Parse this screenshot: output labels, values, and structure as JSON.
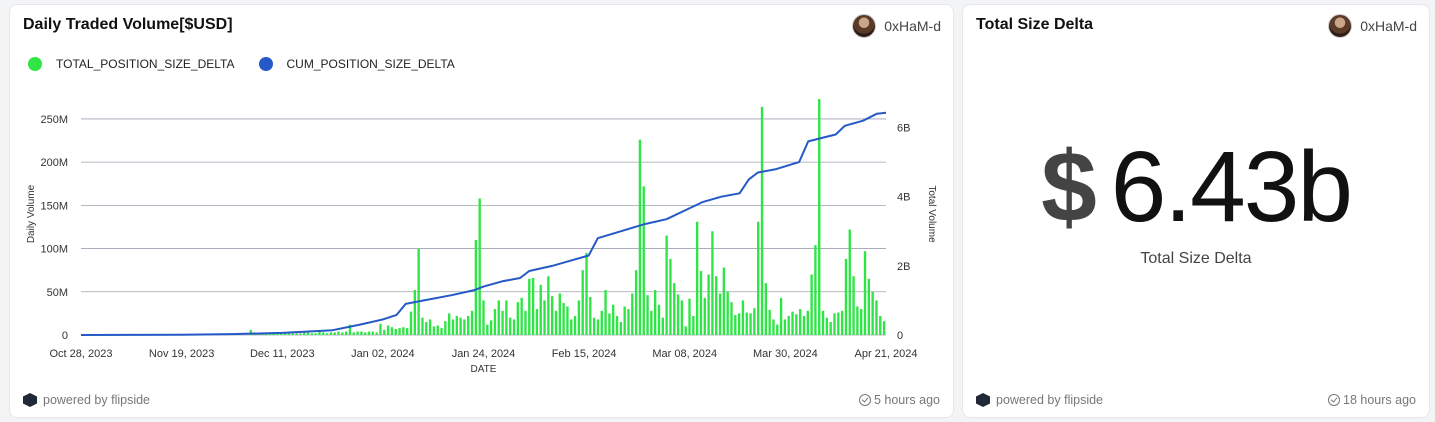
{
  "card_chart": {
    "title": "Daily Traded Volume[$USD]",
    "author": "0xHaM-d",
    "powered_by": "powered by flipside",
    "updated": "5 hours ago"
  },
  "card_kpi": {
    "title": "Total Size Delta",
    "author": "0xHaM-d",
    "currency": "$",
    "value": "6.43b",
    "label": "Total Size Delta",
    "powered_by": "powered by flipside",
    "updated": "18 hours ago"
  },
  "colors": {
    "bar": "#2ee545",
    "line": "#2459c7",
    "grid": "#9ca3af",
    "axis_text": "#333333"
  },
  "chart_data": {
    "type": "bar",
    "title": "Daily Traded Volume[$USD]",
    "xlabel": "DATE",
    "ylabel": "Daily Volume",
    "y2label": "Total Volume",
    "legend_position": "top-left",
    "grid": true,
    "ylim": [
      0,
      280000000
    ],
    "y2lim": [
      0,
      7000000000
    ],
    "y_ticks": [
      0,
      50000000,
      100000000,
      150000000,
      200000000,
      250000000
    ],
    "y_tick_labels": [
      "0",
      "50M",
      "100M",
      "150M",
      "200M",
      "250M"
    ],
    "y2_ticks": [
      0,
      2000000000,
      4000000000,
      6000000000
    ],
    "y2_tick_labels": [
      "0",
      "2B",
      "4B",
      "6B"
    ],
    "x_ticks": [
      "Oct 28, 2023",
      "Nov 19, 2023",
      "Dec 11, 2023",
      "Jan 02, 2024",
      "Jan 24, 2024",
      "Feb 15, 2024",
      "Mar 08, 2024",
      "Mar 30, 2024",
      "Apr 21, 2024"
    ],
    "x_start": "2023-10-28",
    "x_end": "2024-04-21",
    "series": [
      {
        "name": "TOTAL_POSITION_SIZE_DELTA",
        "kind": "bar",
        "axis": "left",
        "values": [
          0,
          0,
          0,
          0,
          0,
          0,
          0,
          0,
          0,
          0,
          0,
          0,
          0,
          0,
          0,
          0,
          0,
          0,
          0,
          1000000,
          0,
          0,
          0,
          0,
          0,
          0,
          0,
          0,
          0,
          0,
          0,
          0,
          0,
          0,
          0,
          500000,
          500000,
          0,
          0,
          0,
          0,
          0,
          0,
          0,
          6000000,
          3000000,
          2000000,
          2000000,
          2000000,
          2000000,
          3000000,
          3000000,
          2000000,
          2000000,
          3000000,
          2000000,
          2000000,
          2000000,
          3000000,
          3000000,
          2000000,
          2000000,
          5000000,
          3000000,
          2000000,
          3000000,
          3000000,
          4000000,
          3000000,
          4000000,
          12000000,
          3000000,
          4000000,
          4000000,
          3000000,
          4000000,
          4000000,
          3000000,
          13000000,
          6000000,
          11000000,
          9000000,
          7000000,
          8000000,
          9000000,
          8000000,
          27000000,
          52000000,
          100000000,
          20000000,
          15000000,
          18000000,
          10000000,
          11000000,
          8000000,
          16000000,
          25000000,
          18000000,
          22000000,
          20000000,
          18000000,
          22000000,
          28000000,
          110000000,
          158000000,
          40000000,
          12000000,
          17000000,
          30000000,
          40000000,
          28000000,
          40000000,
          20000000,
          18000000,
          38000000,
          43000000,
          28000000,
          65000000,
          66000000,
          30000000,
          58000000,
          40000000,
          68000000,
          45000000,
          28000000,
          48000000,
          37000000,
          33000000,
          18000000,
          22000000,
          40000000,
          75000000,
          95000000,
          44000000,
          20000000,
          18000000,
          28000000,
          52000000,
          25000000,
          35000000,
          22000000,
          15000000,
          33000000,
          30000000,
          48000000,
          75000000,
          226000000,
          172000000,
          46000000,
          28000000,
          52000000,
          35000000,
          20000000,
          115000000,
          88000000,
          60000000,
          47000000,
          40000000,
          10000000,
          42000000,
          22000000,
          131000000,
          74000000,
          43000000,
          70000000,
          120000000,
          68000000,
          48000000,
          78000000,
          50000000,
          38000000,
          23000000,
          25000000,
          40000000,
          26000000,
          25000000,
          31000000,
          131000000,
          264000000,
          60000000,
          29000000,
          18000000,
          12000000,
          43000000,
          18000000,
          22000000,
          27000000,
          24000000,
          30000000,
          22000000,
          28000000,
          70000000,
          104000000,
          273000000,
          28000000,
          20000000,
          15000000,
          25000000,
          26000000,
          28000000,
          88000000,
          122000000,
          68000000,
          33000000,
          30000000,
          97000000,
          65000000,
          50000000,
          40000000,
          22000000,
          16000000
        ]
      },
      {
        "name": "CUM_POSITION_SIZE_DELTA",
        "kind": "line",
        "axis": "right",
        "points": [
          [
            "2023-10-28",
            0
          ],
          [
            "2023-11-19",
            10000000
          ],
          [
            "2023-11-30",
            25000000
          ],
          [
            "2023-12-11",
            60000000
          ],
          [
            "2023-12-22",
            140000000
          ],
          [
            "2023-12-28",
            300000000
          ],
          [
            "2024-01-02",
            450000000
          ],
          [
            "2024-01-05",
            580000000
          ],
          [
            "2024-01-07",
            900000000
          ],
          [
            "2024-01-11",
            1000000000
          ],
          [
            "2024-01-17",
            1150000000
          ],
          [
            "2024-01-22",
            1300000000
          ],
          [
            "2024-01-24",
            1400000000
          ],
          [
            "2024-01-28",
            1550000000
          ],
          [
            "2024-02-01",
            1650000000
          ],
          [
            "2024-02-03",
            1850000000
          ],
          [
            "2024-02-08",
            2000000000
          ],
          [
            "2024-02-12",
            2150000000
          ],
          [
            "2024-02-16",
            2300000000
          ],
          [
            "2024-02-18",
            2800000000
          ],
          [
            "2024-02-23",
            3000000000
          ],
          [
            "2024-02-28",
            3200000000
          ],
          [
            "2024-03-04",
            3350000000
          ],
          [
            "2024-03-08",
            3600000000
          ],
          [
            "2024-03-12",
            3850000000
          ],
          [
            "2024-03-16",
            4000000000
          ],
          [
            "2024-03-20",
            4100000000
          ],
          [
            "2024-03-22",
            4500000000
          ],
          [
            "2024-03-24",
            4700000000
          ],
          [
            "2024-03-28",
            4800000000
          ],
          [
            "2024-04-02",
            5000000000
          ],
          [
            "2024-04-04",
            5600000000
          ],
          [
            "2024-04-07",
            5700000000
          ],
          [
            "2024-04-10",
            5800000000
          ],
          [
            "2024-04-12",
            6050000000
          ],
          [
            "2024-04-16",
            6200000000
          ],
          [
            "2024-04-19",
            6400000000
          ],
          [
            "2024-04-21",
            6430000000
          ]
        ]
      }
    ]
  }
}
